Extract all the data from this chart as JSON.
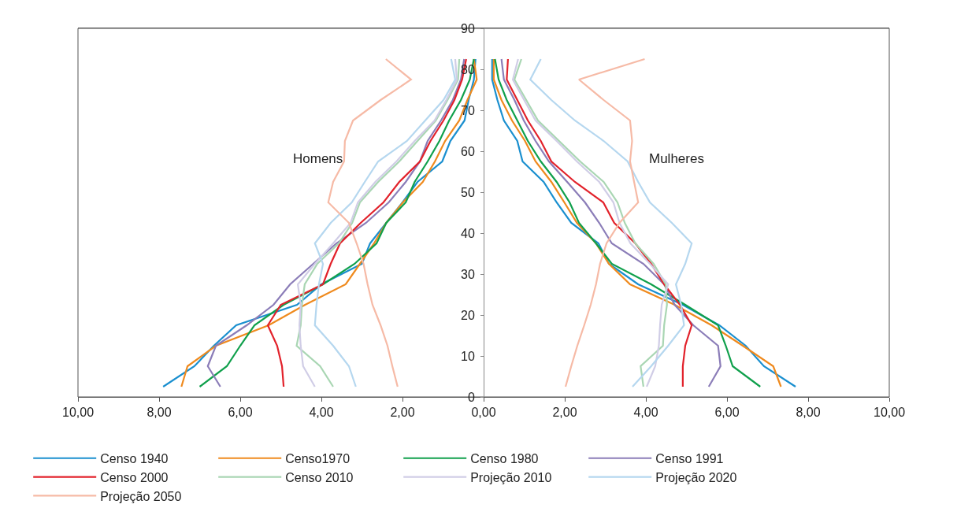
{
  "chart_data": {
    "type": "line",
    "xlim": [
      -10,
      10
    ],
    "xticks": [
      {
        "value": -10,
        "label": "10,00"
      },
      {
        "value": -8,
        "label": "8,00"
      },
      {
        "value": -6,
        "label": "6,00"
      },
      {
        "value": -4,
        "label": "4,00"
      },
      {
        "value": -2,
        "label": "2,00"
      },
      {
        "value": 0,
        "label": "0,00"
      },
      {
        "value": 2,
        "label": "2,00"
      },
      {
        "value": 4,
        "label": "4,00"
      },
      {
        "value": 6,
        "label": "6,00"
      },
      {
        "value": 8,
        "label": "8,00"
      },
      {
        "value": 10,
        "label": "10,00"
      }
    ],
    "ylim": [
      0,
      90
    ],
    "yticks": [
      0,
      10,
      20,
      30,
      40,
      50,
      60,
      70,
      80,
      90
    ],
    "grid": false,
    "legend": "bottom",
    "marker": "none",
    "line_style": "solid",
    "annotations": [
      "Homens",
      "Mulheres"
    ],
    "series": [
      {
        "name": "Censo 1940",
        "color": "#1a8fcf",
        "x": [
          -7.9,
          -7.13,
          -6.65,
          -6.1,
          -4.6,
          -4.0,
          -3.0,
          -2.8,
          -2.4,
          -2.0,
          -1.63,
          -1.02,
          -0.82,
          -0.47,
          -0.37,
          -0.24,
          -0.2,
          null,
          7.69,
          6.91,
          6.46,
          5.81,
          4.91,
          3.81,
          3.09,
          2.83,
          2.16,
          1.8,
          1.48,
          0.96,
          0.83,
          0.5,
          0.34,
          0.21,
          0.21
        ],
        "values": [
          2.5,
          7.5,
          12.5,
          17.5,
          22.5,
          27.5,
          32.5,
          37.5,
          42.5,
          47.5,
          52.5,
          57.5,
          62.5,
          67.5,
          72.5,
          77.5,
          82.5,
          null,
          2.5,
          7.5,
          12.5,
          17.5,
          22.5,
          27.5,
          32.5,
          37.5,
          42.5,
          47.5,
          52.5,
          57.5,
          62.5,
          67.5,
          72.5,
          77.5,
          82.5
        ]
      },
      {
        "name": "Censo1970",
        "color": "#ef8a1e",
        "x": [
          -7.45,
          -7.3,
          -6.6,
          -5.3,
          -4.4,
          -3.4,
          -3.05,
          -2.7,
          -2.4,
          -1.99,
          -1.5,
          -1.2,
          -0.95,
          -0.6,
          -0.4,
          -0.17,
          -0.24,
          null,
          7.33,
          7.14,
          6.39,
          5.62,
          4.71,
          3.61,
          3.09,
          2.77,
          2.3,
          1.99,
          1.67,
          1.28,
          1.02,
          0.7,
          0.44,
          0.25,
          0.25
        ],
        "values": [
          2.5,
          7.5,
          12.5,
          17.5,
          22.5,
          27.5,
          32.5,
          37.5,
          42.5,
          47.5,
          52.5,
          57.5,
          62.5,
          67.5,
          72.5,
          77.5,
          82.5,
          null,
          2.5,
          7.5,
          12.5,
          17.5,
          22.5,
          27.5,
          32.5,
          37.5,
          42.5,
          47.5,
          52.5,
          57.5,
          62.5,
          67.5,
          72.5,
          77.5,
          82.5
        ]
      },
      {
        "name": "Censo 1980",
        "color": "#10a04c",
        "x": [
          -7.0,
          -6.33,
          -6.0,
          -5.65,
          -4.93,
          -3.96,
          -3.18,
          -2.64,
          -2.4,
          -1.92,
          -1.7,
          -1.38,
          -1.09,
          -0.85,
          -0.56,
          -0.34,
          -0.24,
          null,
          6.82,
          6.14,
          5.97,
          5.78,
          4.97,
          4.13,
          3.16,
          2.77,
          2.35,
          2.12,
          1.8,
          1.41,
          1.09,
          0.83,
          0.57,
          0.37,
          0.28
        ],
        "values": [
          2.5,
          7.5,
          12.5,
          17.5,
          22.5,
          27.5,
          32.5,
          37.5,
          42.5,
          47.5,
          52.5,
          57.5,
          62.5,
          67.5,
          72.5,
          77.5,
          82.5,
          null,
          2.5,
          7.5,
          12.5,
          17.5,
          22.5,
          27.5,
          32.5,
          37.5,
          42.5,
          47.5,
          52.5,
          57.5,
          62.5,
          67.5,
          72.5,
          77.5,
          82.5
        ]
      },
      {
        "name": "Censo 1991",
        "color": "#8b7db8",
        "x": [
          -6.49,
          -6.8,
          -6.6,
          -5.84,
          -5.18,
          -4.77,
          -4.2,
          -3.63,
          -2.9,
          -2.34,
          -1.92,
          -1.57,
          -1.38,
          -1.05,
          -0.76,
          -0.56,
          -0.48,
          null,
          5.55,
          5.84,
          5.78,
          5.17,
          4.71,
          4.45,
          3.94,
          3.16,
          2.85,
          2.5,
          2.06,
          1.61,
          1.28,
          0.99,
          0.76,
          0.5,
          0.44
        ],
        "values": [
          2.5,
          7.5,
          12.5,
          17.5,
          22.5,
          27.5,
          32.5,
          37.5,
          42.5,
          47.5,
          52.5,
          57.5,
          62.5,
          67.5,
          72.5,
          77.5,
          82.5,
          null,
          2.5,
          7.5,
          12.5,
          17.5,
          22.5,
          27.5,
          32.5,
          37.5,
          42.5,
          47.5,
          52.5,
          57.5,
          62.5,
          67.5,
          72.5,
          77.5,
          82.5
        ]
      },
      {
        "name": "Censo 2000",
        "color": "#e2222b",
        "x": [
          -4.93,
          -4.97,
          -5.09,
          -5.32,
          -5.0,
          -3.96,
          -3.77,
          -3.54,
          -3.03,
          -2.47,
          -2.08,
          -1.57,
          -1.31,
          -0.99,
          -0.72,
          -0.53,
          -0.43,
          null,
          4.91,
          4.91,
          4.97,
          5.13,
          4.84,
          4.45,
          4.13,
          3.74,
          3.22,
          2.95,
          2.25,
          1.67,
          1.41,
          1.09,
          0.83,
          0.57,
          0.6
        ],
        "values": [
          2.5,
          7.5,
          12.5,
          17.5,
          22.5,
          27.5,
          32.5,
          37.5,
          42.5,
          47.5,
          52.5,
          57.5,
          62.5,
          67.5,
          72.5,
          77.5,
          82.5,
          null,
          2.5,
          7.5,
          12.5,
          17.5,
          22.5,
          27.5,
          32.5,
          37.5,
          42.5,
          47.5,
          52.5,
          57.5,
          62.5,
          67.5,
          72.5,
          77.5,
          82.5
        ]
      },
      {
        "name": "Censo 2010",
        "color": "#a9d6b3",
        "x": [
          -3.71,
          -4.03,
          -4.61,
          -4.51,
          -4.48,
          -4.41,
          -4.1,
          -3.57,
          -3.24,
          -3.05,
          -2.6,
          -2.08,
          -1.63,
          -1.18,
          -0.89,
          -0.63,
          -0.6,
          null,
          3.94,
          3.87,
          4.42,
          4.45,
          4.52,
          4.49,
          4.19,
          3.74,
          3.48,
          3.3,
          2.96,
          2.38,
          1.86,
          1.34,
          1.05,
          0.76,
          0.93
        ],
        "values": [
          2.5,
          7.5,
          12.5,
          17.5,
          22.5,
          27.5,
          32.5,
          37.5,
          42.5,
          47.5,
          52.5,
          57.5,
          62.5,
          67.5,
          72.5,
          77.5,
          82.5,
          null,
          2.5,
          7.5,
          12.5,
          17.5,
          22.5,
          27.5,
          32.5,
          37.5,
          42.5,
          47.5,
          52.5,
          57.5,
          62.5,
          67.5,
          72.5,
          77.5,
          82.5
        ]
      },
      {
        "name": "Projeção 2010",
        "color": "#d0cde6",
        "x": [
          -4.16,
          -4.45,
          -4.51,
          -4.54,
          -4.51,
          -4.58,
          -4.16,
          -3.71,
          -3.28,
          -3.1,
          -2.67,
          -2.15,
          -1.7,
          -1.21,
          -0.92,
          -0.66,
          -0.7,
          null,
          4.02,
          4.23,
          4.32,
          4.35,
          4.39,
          4.55,
          4.1,
          3.62,
          3.35,
          3.2,
          2.85,
          2.3,
          1.8,
          1.28,
          1.0,
          0.72,
          0.85
        ],
        "values": [
          2.5,
          7.5,
          12.5,
          17.5,
          22.5,
          27.5,
          32.5,
          37.5,
          42.5,
          47.5,
          52.5,
          57.5,
          62.5,
          67.5,
          72.5,
          77.5,
          82.5,
          null,
          2.5,
          7.5,
          12.5,
          17.5,
          22.5,
          27.5,
          32.5,
          37.5,
          42.5,
          47.5,
          52.5,
          57.5,
          62.5,
          67.5,
          72.5,
          77.5,
          82.5
        ]
      },
      {
        "name": "Projeção 2020",
        "color": "#b5d7ef",
        "x": [
          -3.15,
          -3.32,
          -3.71,
          -4.16,
          -4.12,
          -4.06,
          -3.96,
          -4.16,
          -3.77,
          -3.25,
          -2.93,
          -2.6,
          -1.89,
          -1.44,
          -0.99,
          -0.7,
          -0.8,
          null,
          3.67,
          4.13,
          4.55,
          4.94,
          4.87,
          4.74,
          4.97,
          5.13,
          4.64,
          4.1,
          3.81,
          3.55,
          2.96,
          2.25,
          1.67,
          1.15,
          1.41
        ],
        "values": [
          2.5,
          7.5,
          12.5,
          17.5,
          22.5,
          27.5,
          32.5,
          37.5,
          42.5,
          47.5,
          52.5,
          57.5,
          62.5,
          67.5,
          72.5,
          77.5,
          82.5,
          null,
          2.5,
          7.5,
          12.5,
          17.5,
          22.5,
          27.5,
          32.5,
          37.5,
          42.5,
          47.5,
          52.5,
          57.5,
          62.5,
          67.5,
          72.5,
          77.5,
          82.5
        ]
      },
      {
        "name": "Projeção 2050",
        "color": "#f6baa6",
        "x": [
          -2.12,
          -2.25,
          -2.37,
          -2.54,
          -2.74,
          -2.86,
          -2.96,
          -3.13,
          -3.32,
          -3.83,
          -3.71,
          -3.44,
          -3.42,
          -3.22,
          -2.54,
          -1.79,
          -2.41,
          null,
          2.02,
          2.16,
          2.31,
          2.48,
          2.64,
          2.77,
          2.87,
          3.03,
          3.35,
          3.81,
          3.71,
          3.61,
          3.66,
          3.61,
          2.96,
          2.35,
          3.97
        ],
        "values": [
          2.5,
          7.5,
          12.5,
          17.5,
          22.5,
          27.5,
          32.5,
          37.5,
          42.5,
          47.5,
          52.5,
          57.5,
          62.5,
          67.5,
          72.5,
          77.5,
          82.5,
          null,
          2.5,
          7.5,
          12.5,
          17.5,
          22.5,
          27.5,
          32.5,
          37.5,
          42.5,
          47.5,
          52.5,
          57.5,
          62.5,
          67.5,
          72.5,
          77.5,
          82.5
        ]
      }
    ]
  }
}
